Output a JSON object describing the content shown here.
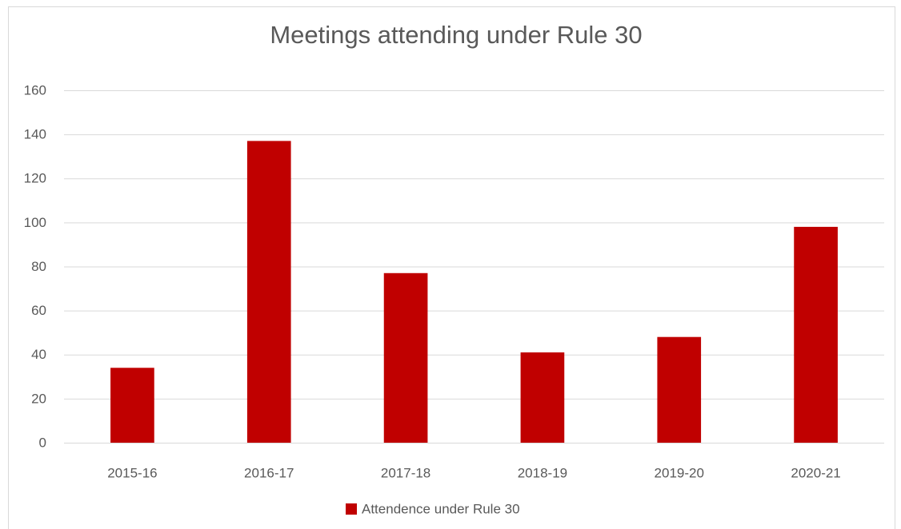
{
  "chart_data": {
    "type": "bar",
    "title": "Meetings attending under Rule 30",
    "categories": [
      "2015-16",
      "2016-17",
      "2017-18",
      "2018-19",
      "2019-20",
      "2020-21"
    ],
    "series": [
      {
        "name": "Attendence under Rule 30",
        "color": "#c00000",
        "values": [
          34,
          137,
          77,
          41,
          48,
          98
        ]
      }
    ],
    "ylim": [
      0,
      160
    ],
    "yticks": [
      0,
      20,
      40,
      60,
      80,
      100,
      120,
      140,
      160
    ],
    "grid": true,
    "legend": "bottom"
  }
}
